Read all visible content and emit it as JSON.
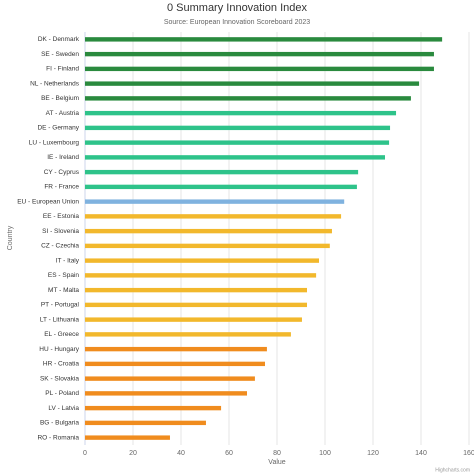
{
  "chart_data": {
    "type": "bar",
    "orientation": "horizontal",
    "title": "0 Summary Innovation Index",
    "subtitle": "Source: European Innovation Scoreboard 2023",
    "xlabel": "Value",
    "ylabel": "Country",
    "credit": "Highcharts.com",
    "categories": [
      "DK - Denmark",
      "SE - Sweden",
      "FI - Finland",
      "NL - Netherlands",
      "BE - Belgium",
      "AT - Austria",
      "DE - Germany",
      "LU - Luxembourg",
      "IE - Ireland",
      "CY - Cyprus",
      "FR - France",
      "EU - European Union",
      "EE - Estonia",
      "SI - Slovenia",
      "CZ - Czechia",
      "IT - Italy",
      "ES - Spain",
      "MT - Malta",
      "PT - Portugal",
      "LT - Lithuania",
      "EL - Greece",
      "HU - Hungary",
      "HR - Croatia",
      "SK - Slovakia",
      "PL - Poland",
      "LV - Latvia",
      "BG - Bulgaria",
      "RO - Romania"
    ],
    "values": [
      148.8,
      145.4,
      145.4,
      139.2,
      135.8,
      129.6,
      127.1,
      126.7,
      125.0,
      113.8,
      113.3,
      108.0,
      106.7,
      102.9,
      102.0,
      97.5,
      96.3,
      92.5,
      92.5,
      90.4,
      85.8,
      75.8,
      75.0,
      70.8,
      67.5,
      56.7,
      50.4,
      35.4
    ],
    "colors": [
      "#2a8a3e",
      "#2a8a3e",
      "#2a8a3e",
      "#2a8a3e",
      "#2a8a3e",
      "#2ec38a",
      "#2ec38a",
      "#2ec38a",
      "#2ec38a",
      "#2ec38a",
      "#2ec38a",
      "#7fb2df",
      "#f2b82c",
      "#f2b82c",
      "#f2b82c",
      "#f2b82c",
      "#f2b82c",
      "#f2b82c",
      "#f2b82c",
      "#f2b82c",
      "#f2b82c",
      "#f08c1e",
      "#f08c1e",
      "#f08c1e",
      "#f08c1e",
      "#f08c1e",
      "#f08c1e",
      "#f08c1e"
    ],
    "xlim": [
      0,
      160
    ],
    "xticks": [
      0,
      20,
      40,
      60,
      80,
      100,
      120,
      140,
      160
    ],
    "grid": true
  }
}
